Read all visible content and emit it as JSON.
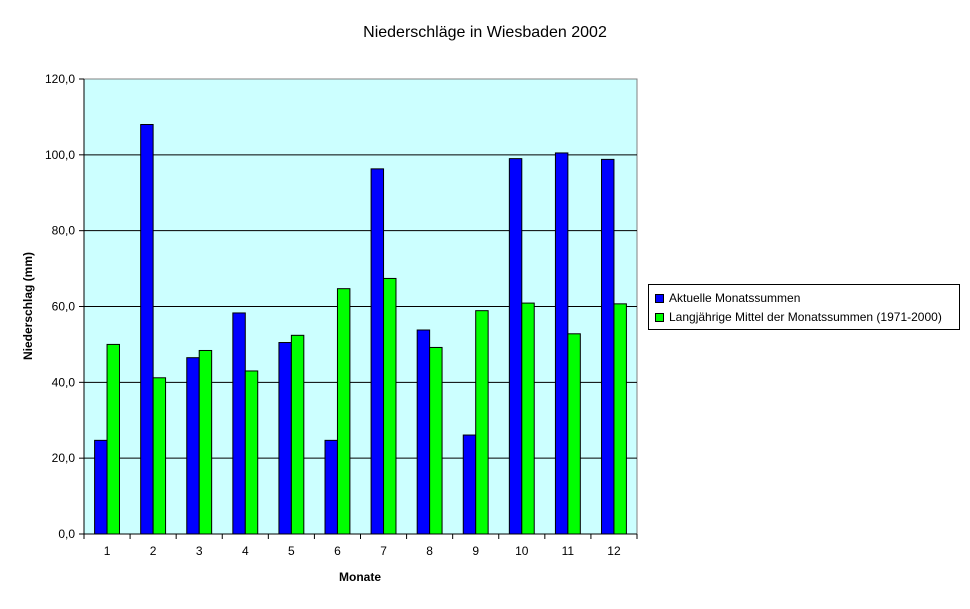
{
  "chart_data": {
    "type": "bar",
    "title": "Niederschläge in Wiesbaden 2002",
    "xlabel": "Monate",
    "ylabel": "Niederschlag (mm)",
    "categories": [
      "1",
      "2",
      "3",
      "4",
      "5",
      "6",
      "7",
      "8",
      "9",
      "10",
      "11",
      "12"
    ],
    "ylim": [
      0,
      120
    ],
    "ytick_step": 20,
    "ytick_labels": [
      "0,0",
      "20,0",
      "40,0",
      "60,0",
      "80,0",
      "100,0",
      "120,0"
    ],
    "grid": true,
    "legend_position": "right",
    "plot_background": "#CCFFFF",
    "series": [
      {
        "name": "Aktuelle Monatssummen",
        "color": "#0000FF",
        "values": [
          24.7,
          108.0,
          46.5,
          58.3,
          50.5,
          24.7,
          96.3,
          53.8,
          26.1,
          99.0,
          100.5,
          98.8
        ]
      },
      {
        "name": "Langjährige Mittel der Monatssummen (1971-2000)",
        "color": "#00FF00",
        "values": [
          50.0,
          41.2,
          48.4,
          43.0,
          52.4,
          64.7,
          67.4,
          49.2,
          58.9,
          60.9,
          52.8,
          60.7
        ]
      }
    ]
  }
}
